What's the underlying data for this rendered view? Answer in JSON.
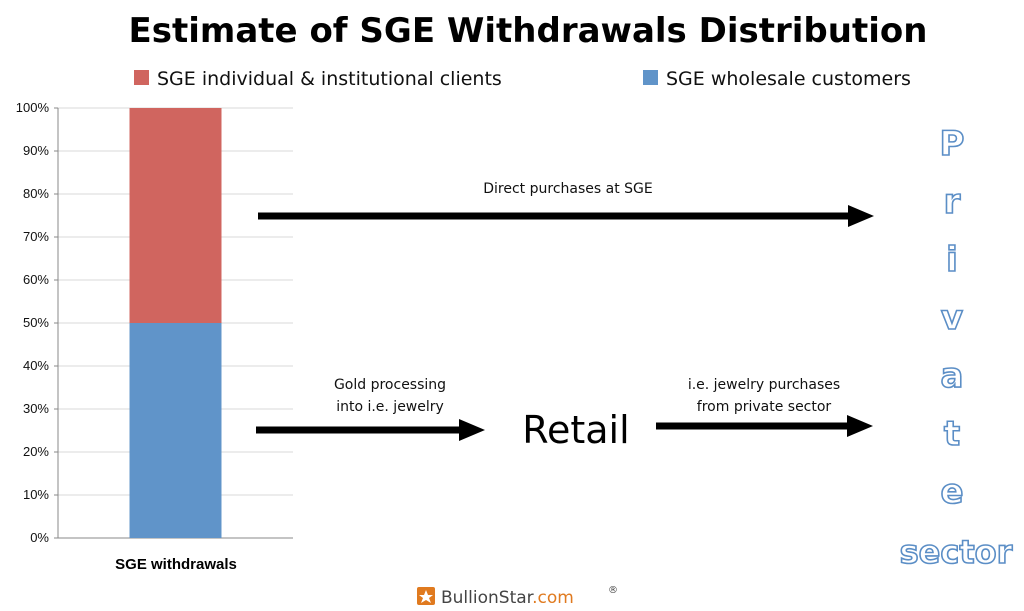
{
  "chart_data": {
    "type": "bar",
    "stacked": true,
    "title": "Estimate of SGE Withdrawals Distribution",
    "categories": [
      "SGE withdrawals"
    ],
    "series": [
      {
        "name": "SGE wholesale customers",
        "values": [
          50
        ],
        "color": "#6094c9"
      },
      {
        "name": "SGE individual & institutional clients",
        "values": [
          50
        ],
        "color": "#d0655f"
      }
    ],
    "legend_order": [
      "SGE individual & institutional clients",
      "SGE wholesale customers"
    ],
    "legend_position": "top",
    "ylim": [
      0,
      100
    ],
    "y_ticks": [
      "0%",
      "10%",
      "20%",
      "30%",
      "40%",
      "50%",
      "60%",
      "70%",
      "80%",
      "90%",
      "100%"
    ],
    "grid": true
  },
  "annotations": {
    "direct_purchases": "Direct purchases at SGE",
    "gold_processing_line1": "Gold processing",
    "gold_processing_line2": "into i.e. jewelry",
    "retail": "Retail",
    "jewelry_purchases_line1": "i.e. jewelry purchases",
    "jewelry_purchases_line2": "from private sector",
    "private_sector_letters": [
      "P",
      "r",
      "i",
      "v",
      "a",
      "t",
      "e"
    ],
    "sector": "sector"
  },
  "branding": {
    "name": "BullionStar",
    "suffix": ".com",
    "mark": "®",
    "accent_color": "#e07a1f"
  }
}
